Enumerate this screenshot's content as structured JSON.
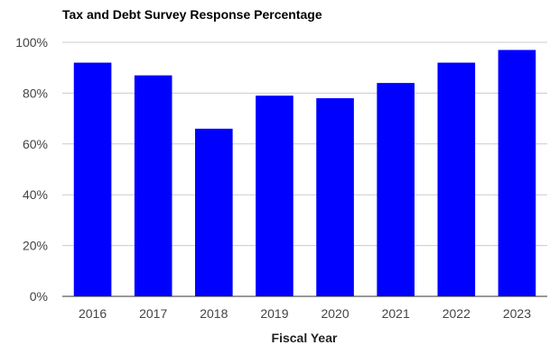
{
  "chart_data": {
    "type": "bar",
    "title": "Tax and Debt Survey Response Percentage",
    "xlabel": "Fiscal Year",
    "ylabel": "",
    "categories": [
      "2016",
      "2017",
      "2018",
      "2019",
      "2020",
      "2021",
      "2022",
      "2023"
    ],
    "values": [
      92,
      87,
      66,
      79,
      78,
      84,
      92,
      97
    ],
    "ylim": [
      0,
      100
    ],
    "yticks": [
      0,
      20,
      40,
      60,
      80,
      100
    ],
    "ytick_labels": [
      "0%",
      "20%",
      "40%",
      "60%",
      "80%",
      "100%"
    ],
    "grid": true,
    "legend": "none",
    "bar_color": "#0000ff"
  }
}
